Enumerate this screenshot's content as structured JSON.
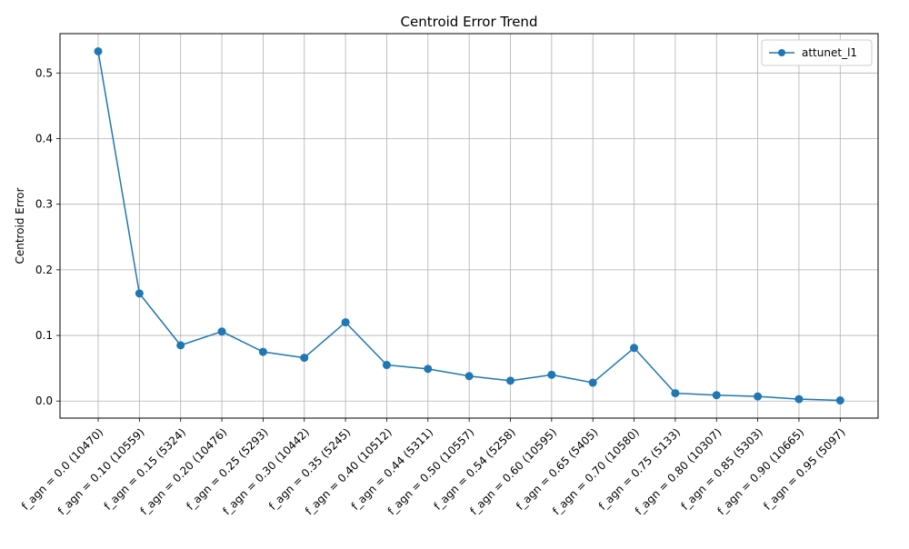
{
  "chart_data": {
    "type": "line",
    "title": "Centroid Error Trend",
    "xlabel": "",
    "ylabel": "Centroid Error",
    "categories": [
      "f_agn = 0.0 (10470)",
      "f_agn = 0.10 (10559)",
      "f_agn = 0.15 (5324)",
      "f_agn = 0.20 (10476)",
      "f_agn = 0.25 (5293)",
      "f_agn = 0.30 (10442)",
      "f_agn = 0.35 (5245)",
      "f_agn = 0.40 (10512)",
      "f_agn = 0.44 (5311)",
      "f_agn = 0.50 (10557)",
      "f_agn = 0.54 (5258)",
      "f_agn = 0.60 (10595)",
      "f_agn = 0.65 (5405)",
      "f_agn = 0.70 (10580)",
      "f_agn = 0.75 (5133)",
      "f_agn = 0.80 (10307)",
      "f_agn = 0.85 (5303)",
      "f_agn = 0.90 (10665)",
      "f_agn = 0.95 (5097)"
    ],
    "series": [
      {
        "name": "attunet_l1",
        "color": "#1f77b4",
        "marker": "circle",
        "values": [
          0.533,
          0.164,
          0.085,
          0.106,
          0.075,
          0.066,
          0.12,
          0.055,
          0.049,
          0.038,
          0.031,
          0.04,
          0.028,
          0.081,
          0.012,
          0.009,
          0.007,
          0.003,
          0.001
        ]
      }
    ],
    "yticks": [
      "0.0",
      "0.1",
      "0.2",
      "0.3",
      "0.4",
      "0.5"
    ],
    "ylim": [
      -0.026,
      0.56
    ],
    "grid": true,
    "legend_position": "top-right"
  }
}
